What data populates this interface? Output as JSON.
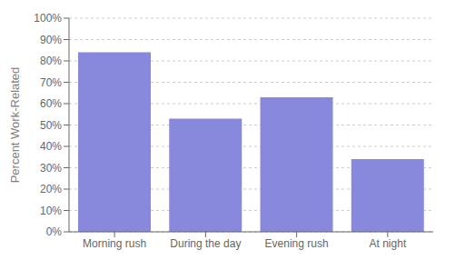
{
  "chart_data": {
    "type": "bar",
    "categories": [
      "Morning rush",
      "During the day",
      "Evening rush",
      "At night"
    ],
    "values": [
      84,
      53,
      63,
      34
    ],
    "color": "#8888dd",
    "y_label": "Percent Work-Related",
    "ylim": [
      0,
      100
    ],
    "yticks": [
      {
        "value": 0,
        "label": "0%"
      },
      {
        "value": 10,
        "label": "10%"
      },
      {
        "value": 20,
        "label": "20%"
      },
      {
        "value": 30,
        "label": "30%"
      },
      {
        "value": 40,
        "label": "40%"
      },
      {
        "value": 50,
        "label": "50%"
      },
      {
        "value": 60,
        "label": "60%"
      },
      {
        "value": 70,
        "label": "70%"
      },
      {
        "value": 80,
        "label": "80%"
      },
      {
        "value": 90,
        "label": "90%"
      },
      {
        "value": 100,
        "label": "100%"
      }
    ],
    "grid": true
  }
}
